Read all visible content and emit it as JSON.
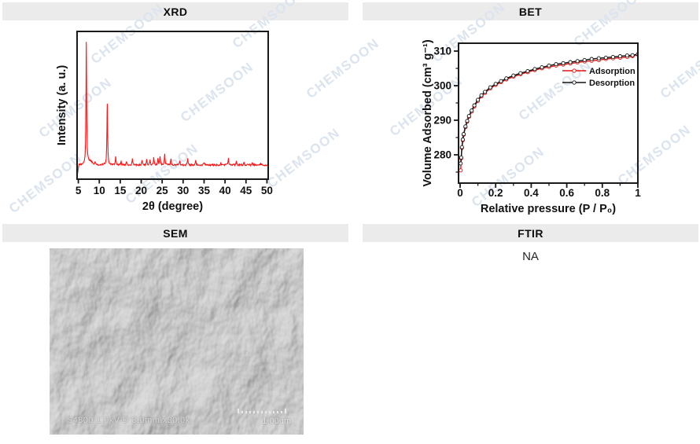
{
  "panels": {
    "xrd": {
      "title": "XRD"
    },
    "bet": {
      "title": "BET"
    },
    "sem": {
      "title": "SEM"
    },
    "ftir": {
      "title": "FTIR",
      "content": "NA"
    }
  },
  "watermark": {
    "text": "CHEMSOON",
    "color": "#dce4ee"
  },
  "sem_overlay": {
    "caption": "S4800 1.0kV-D 3.0mm x30.0k",
    "scale_label": "1.00um"
  },
  "colors": {
    "header_bg": "#ebebeb",
    "xrd_line": "#fa1414",
    "adsorption": "#e01310",
    "desorption": "#141414",
    "axis": "#1a1a1a"
  },
  "chart_data": [
    {
      "type": "line",
      "title": "XRD",
      "xlabel": "2θ (degree)",
      "ylabel": "Intensity (a. u.)",
      "xlim": [
        4.7,
        50.3
      ],
      "xticks": [
        5,
        10,
        15,
        20,
        25,
        30,
        35,
        40,
        45,
        50
      ],
      "grid": false,
      "line_color": "#fa1414",
      "peaks_format": "[two_theta_deg, relative_intensity]",
      "peaks": [
        [
          6.9,
          1.0
        ],
        [
          9.0,
          0.02
        ],
        [
          11.9,
          0.5
        ],
        [
          13.9,
          0.07
        ],
        [
          15.2,
          0.03
        ],
        [
          16.5,
          0.03
        ],
        [
          17.9,
          0.05
        ],
        [
          20.2,
          0.04
        ],
        [
          21.3,
          0.05
        ],
        [
          22.1,
          0.04
        ],
        [
          23.0,
          0.06
        ],
        [
          24.0,
          0.05
        ],
        [
          24.5,
          0.07
        ],
        [
          25.6,
          0.09
        ],
        [
          27.1,
          0.05
        ],
        [
          29.2,
          0.04
        ],
        [
          31.1,
          0.05
        ],
        [
          33.0,
          0.035
        ],
        [
          35.0,
          0.02
        ],
        [
          39.0,
          0.02
        ],
        [
          40.8,
          0.055
        ],
        [
          42.7,
          0.03
        ],
        [
          44.5,
          0.02
        ],
        [
          46.5,
          0.02
        ],
        [
          48.5,
          0.015
        ]
      ]
    },
    {
      "type": "line",
      "title": "BET",
      "xlabel": "Relative pressure (P / P₀)",
      "ylabel": "Volume Adsorbed (cm³ g⁻¹)",
      "xlim": [
        0,
        1
      ],
      "ylim": [
        272,
        312
      ],
      "xticks": [
        0,
        0.2,
        0.4,
        0.6,
        0.8,
        1
      ],
      "xtick_labels": [
        "0",
        "0.2",
        "0.4",
        "0.6",
        "0.8",
        "1"
      ],
      "yticks": [
        280,
        290,
        300,
        310
      ],
      "x_minor_step": 0.1,
      "y_minor_step": 5,
      "grid": false,
      "marker": "open-circle",
      "legend_position": "center-right",
      "series": [
        {
          "name": "Adsorption",
          "color": "#e01310",
          "points_format": "[P_over_P0, volume_cm3_g]",
          "points": [
            [
              0.003,
              275.5
            ],
            [
              0.006,
              279.0
            ],
            [
              0.01,
              282.0
            ],
            [
              0.015,
              284.2
            ],
            [
              0.02,
              285.8
            ],
            [
              0.03,
              288.0
            ],
            [
              0.04,
              289.6
            ],
            [
              0.05,
              291.0
            ],
            [
              0.065,
              292.5
            ],
            [
              0.08,
              294.0
            ],
            [
              0.1,
              295.6
            ],
            [
              0.12,
              296.9
            ],
            [
              0.14,
              297.9
            ],
            [
              0.17,
              299.2
            ],
            [
              0.2,
              300.2
            ],
            [
              0.23,
              301.0
            ],
            [
              0.26,
              301.8
            ],
            [
              0.3,
              302.6
            ],
            [
              0.34,
              303.3
            ],
            [
              0.38,
              303.9
            ],
            [
              0.42,
              304.5
            ],
            [
              0.46,
              305.0
            ],
            [
              0.5,
              305.4
            ],
            [
              0.54,
              305.8
            ],
            [
              0.58,
              306.1
            ],
            [
              0.62,
              306.4
            ],
            [
              0.66,
              306.7
            ],
            [
              0.7,
              307.0
            ],
            [
              0.74,
              307.2
            ],
            [
              0.78,
              307.4
            ],
            [
              0.82,
              307.7
            ],
            [
              0.86,
              307.9
            ],
            [
              0.9,
              308.1
            ],
            [
              0.94,
              308.3
            ],
            [
              0.97,
              308.5
            ],
            [
              1.0,
              309.0
            ]
          ]
        },
        {
          "name": "Desorption",
          "color": "#141414",
          "points_format": "[P_over_P0, volume_cm3_g]",
          "points": [
            [
              1.0,
              309.1
            ],
            [
              0.97,
              308.8
            ],
            [
              0.94,
              308.7
            ],
            [
              0.9,
              308.5
            ],
            [
              0.86,
              308.3
            ],
            [
              0.82,
              308.1
            ],
            [
              0.78,
              307.9
            ],
            [
              0.74,
              307.7
            ],
            [
              0.7,
              307.4
            ],
            [
              0.66,
              307.1
            ],
            [
              0.62,
              306.8
            ],
            [
              0.58,
              306.5
            ],
            [
              0.54,
              306.2
            ],
            [
              0.5,
              305.8
            ],
            [
              0.46,
              305.3
            ],
            [
              0.42,
              304.8
            ],
            [
              0.38,
              304.2
            ],
            [
              0.34,
              303.6
            ],
            [
              0.3,
              302.9
            ],
            [
              0.26,
              302.1
            ],
            [
              0.23,
              301.3
            ],
            [
              0.2,
              300.5
            ],
            [
              0.17,
              299.5
            ],
            [
              0.14,
              298.2
            ],
            [
              0.12,
              297.2
            ],
            [
              0.1,
              295.9
            ],
            [
              0.08,
              294.3
            ],
            [
              0.065,
              292.8
            ],
            [
              0.05,
              291.2
            ],
            [
              0.04,
              289.8
            ],
            [
              0.03,
              288.2
            ],
            [
              0.02,
              286.0
            ],
            [
              0.015,
              284.4
            ],
            [
              0.01,
              282.2
            ],
            [
              0.006,
              279.2
            ],
            [
              0.003,
              277.5
            ]
          ]
        }
      ]
    }
  ]
}
